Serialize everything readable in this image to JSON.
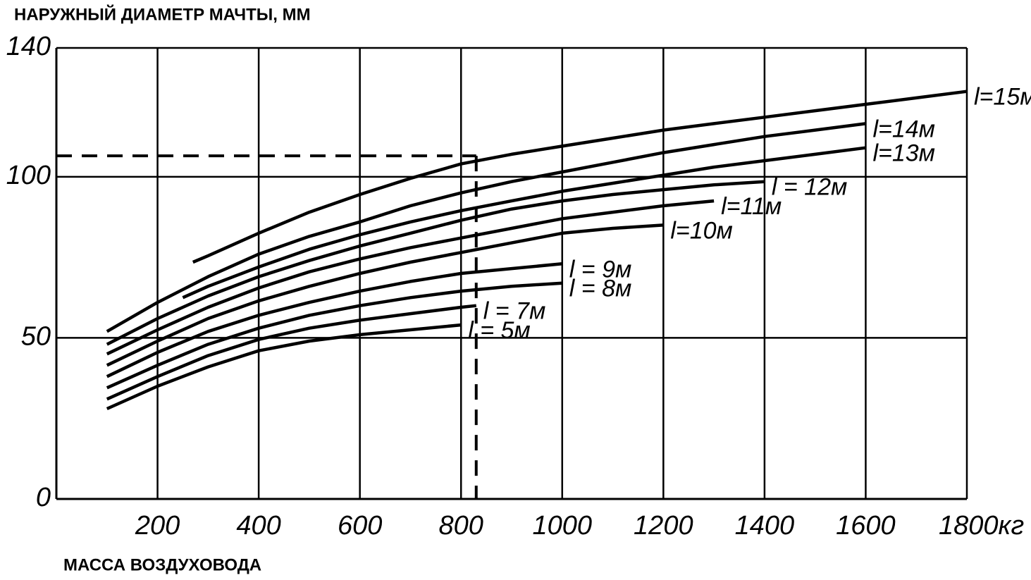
{
  "chart_data": {
    "type": "line",
    "ylabel": "НАРУЖНЫЙ ДИАМЕТР МАЧТЫ, ММ",
    "xlabel": "МАССА ВОЗДУХОВОДА",
    "xlim": [
      0,
      1800
    ],
    "ylim": [
      0,
      140
    ],
    "xticks": [
      200,
      400,
      600,
      800,
      1000,
      1200,
      1400,
      1600,
      {
        "value": 1800,
        "label": "1800кг"
      }
    ],
    "yticks": [
      0,
      50,
      100,
      140
    ],
    "grid": true,
    "dashed_lines": {
      "x": 830,
      "y": 106.5
    },
    "series": [
      {
        "name": "l = 5м",
        "color": "#000000",
        "x": [
          100,
          200,
          300,
          400,
          500,
          600,
          700,
          800
        ],
        "values": [
          28,
          35,
          41,
          46,
          49,
          51,
          52.5,
          54
        ]
      },
      {
        "name": "l = 7м",
        "color": "#000000",
        "x": [
          100,
          200,
          300,
          400,
          500,
          600,
          700,
          800,
          830
        ],
        "values": [
          31,
          38,
          44.5,
          49.5,
          53,
          55.5,
          57.5,
          59.5,
          60
        ]
      },
      {
        "name": "l = 8м",
        "color": "#000000",
        "x": [
          100,
          200,
          300,
          400,
          500,
          600,
          700,
          800,
          900,
          1000
        ],
        "values": [
          34.5,
          41.5,
          48,
          53,
          57,
          60,
          62.5,
          64.5,
          66,
          67
        ]
      },
      {
        "name": "l = 9м",
        "color": "#000000",
        "x": [
          100,
          200,
          300,
          400,
          500,
          600,
          700,
          800,
          900,
          1000
        ],
        "values": [
          38,
          45.5,
          52,
          57,
          61,
          64.5,
          67.5,
          70,
          71.5,
          73
        ]
      },
      {
        "name": "l=10м",
        "color": "#000000",
        "x": [
          100,
          200,
          300,
          400,
          500,
          600,
          700,
          800,
          900,
          1000,
          1100,
          1200
        ],
        "values": [
          41.5,
          49,
          56,
          61.5,
          66,
          70,
          73.5,
          76.5,
          79.5,
          82.5,
          84,
          85
        ]
      },
      {
        "name": "l=11м",
        "color": "#000000",
        "x": [
          100,
          200,
          300,
          400,
          500,
          600,
          700,
          800,
          900,
          1000,
          1100,
          1200,
          1300
        ],
        "values": [
          45,
          52.5,
          59.5,
          65.5,
          70.5,
          74.5,
          78,
          81,
          84,
          87,
          89,
          91,
          92.5
        ]
      },
      {
        "name": "l = 12м",
        "color": "#000000",
        "x": [
          100,
          200,
          300,
          400,
          500,
          600,
          700,
          800,
          900,
          1000,
          1100,
          1200,
          1300,
          1400
        ],
        "values": [
          48,
          56,
          63,
          69,
          74,
          78.5,
          82.5,
          86.5,
          90,
          92.5,
          94.5,
          96,
          97.5,
          98.5
        ]
      },
      {
        "name": "l=13м",
        "color": "#000000",
        "x": [
          250,
          300,
          400,
          500,
          600,
          700,
          800,
          900,
          1000,
          1100,
          1200,
          1300,
          1400,
          1500,
          1600
        ],
        "values": [
          62.5,
          66,
          72,
          77.5,
          82,
          86,
          89.5,
          92.5,
          95.5,
          98,
          100.5,
          103,
          105,
          107,
          109
        ]
      },
      {
        "name": "l=14м",
        "color": "#000000",
        "x": [
          100,
          200,
          300,
          400,
          500,
          600,
          700,
          800,
          900,
          1000,
          1100,
          1200,
          1300,
          1400,
          1500,
          1600
        ],
        "values": [
          52,
          61,
          69,
          76,
          81.5,
          86,
          91,
          95,
          98.5,
          101.5,
          104.5,
          107.5,
          110,
          112.5,
          114.5,
          116.5
        ]
      },
      {
        "name": "l=15м",
        "color": "#000000",
        "x": [
          270,
          300,
          400,
          500,
          600,
          700,
          800,
          900,
          1000,
          1100,
          1200,
          1300,
          1400,
          1500,
          1600,
          1700,
          1800
        ],
        "values": [
          73.5,
          75.5,
          82.5,
          89,
          94.5,
          99.5,
          104,
          107,
          109.5,
          112,
          114.5,
          116.5,
          118.5,
          120.5,
          122.5,
          124.5,
          126.5
        ]
      }
    ]
  }
}
